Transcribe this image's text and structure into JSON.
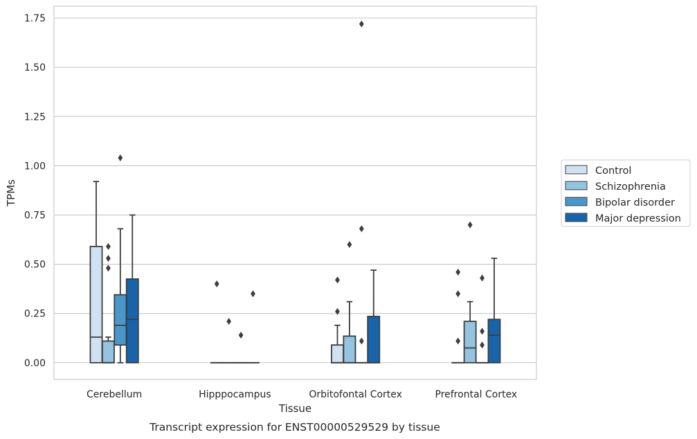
{
  "chart_data": {
    "type": "box",
    "title": "",
    "caption": "Transcript expression for ENST00000529529 by tissue",
    "xlabel": "Tissue",
    "ylabel": "TPMs",
    "ylim": [
      -0.085,
      1.81
    ],
    "yticks": [
      0.0,
      0.25,
      0.5,
      0.75,
      1.0,
      1.25,
      1.5,
      1.75
    ],
    "ytick_labels": [
      "0.00",
      "0.25",
      "0.50",
      "0.75",
      "1.00",
      "1.25",
      "1.50",
      "1.75"
    ],
    "grid": true,
    "legend_position": "right",
    "categories": [
      "Cerebellum",
      "Hipppocampus",
      "Orbitofontal Cortex",
      "Prefrontal Cortex"
    ],
    "series": [
      {
        "name": "Control",
        "color": "#d0e1f2",
        "boxes": [
          {
            "q1": 0.0,
            "median": 0.13,
            "q3": 0.59,
            "whisker_low": 0.0,
            "whisker_high": 0.92,
            "outliers": []
          },
          {
            "q1": 0.0,
            "median": 0.0,
            "q3": 0.0,
            "whisker_low": 0.0,
            "whisker_high": 0.0,
            "outliers": [
              0.4
            ]
          },
          {
            "q1": 0.0,
            "median": 0.0,
            "q3": 0.09,
            "whisker_low": 0.0,
            "whisker_high": 0.19,
            "outliers": [
              0.26,
              0.42
            ]
          },
          {
            "q1": 0.0,
            "median": 0.0,
            "q3": 0.0,
            "whisker_low": 0.0,
            "whisker_high": 0.0,
            "outliers": [
              0.11,
              0.35,
              0.46
            ]
          }
        ]
      },
      {
        "name": "Schizophrenia",
        "color": "#94c4df",
        "boxes": [
          {
            "q1": 0.0,
            "median": 0.0,
            "q3": 0.11,
            "whisker_low": 0.0,
            "whisker_high": 0.13,
            "outliers": [
              0.48,
              0.53,
              0.59
            ]
          },
          {
            "q1": 0.0,
            "median": 0.0,
            "q3": 0.0,
            "whisker_low": 0.0,
            "whisker_high": 0.0,
            "outliers": [
              0.21
            ]
          },
          {
            "q1": 0.0,
            "median": 0.0,
            "q3": 0.135,
            "whisker_low": 0.0,
            "whisker_high": 0.31,
            "outliers": [
              0.6
            ]
          },
          {
            "q1": 0.0,
            "median": 0.075,
            "q3": 0.21,
            "whisker_low": 0.0,
            "whisker_high": 0.31,
            "outliers": [
              0.7
            ]
          }
        ]
      },
      {
        "name": "Bipolar disorder",
        "color": "#4a98c9",
        "boxes": [
          {
            "q1": 0.09,
            "median": 0.19,
            "q3": 0.345,
            "whisker_low": 0.0,
            "whisker_high": 0.68,
            "outliers": [
              1.04
            ]
          },
          {
            "q1": 0.0,
            "median": 0.0,
            "q3": 0.0,
            "whisker_low": 0.0,
            "whisker_high": 0.0,
            "outliers": [
              0.14
            ]
          },
          {
            "q1": 0.0,
            "median": 0.0,
            "q3": 0.0,
            "whisker_low": 0.0,
            "whisker_high": 0.0,
            "outliers": [
              0.11,
              0.68,
              1.72
            ]
          },
          {
            "q1": 0.0,
            "median": 0.0,
            "q3": 0.0,
            "whisker_low": 0.0,
            "whisker_high": 0.0,
            "outliers": [
              0.09,
              0.16,
              0.43
            ]
          }
        ]
      },
      {
        "name": "Major depression",
        "color": "#1764ab",
        "boxes": [
          {
            "q1": 0.0,
            "median": 0.22,
            "q3": 0.425,
            "whisker_low": 0.0,
            "whisker_high": 0.75,
            "outliers": []
          },
          {
            "q1": 0.0,
            "median": 0.0,
            "q3": 0.0,
            "whisker_low": 0.0,
            "whisker_high": 0.0,
            "outliers": [
              0.35
            ]
          },
          {
            "q1": 0.0,
            "median": 0.0,
            "q3": 0.235,
            "whisker_low": 0.0,
            "whisker_high": 0.47,
            "outliers": []
          },
          {
            "q1": 0.0,
            "median": 0.14,
            "q3": 0.22,
            "whisker_low": 0.0,
            "whisker_high": 0.53,
            "outliers": []
          }
        ]
      }
    ]
  }
}
